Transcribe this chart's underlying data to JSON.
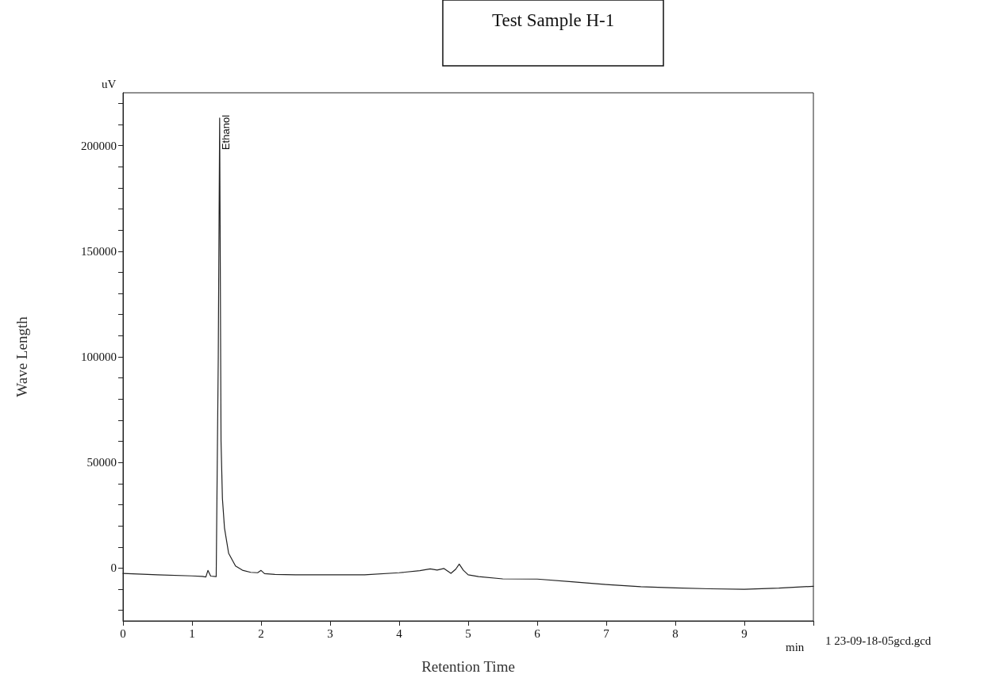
{
  "chart_data": {
    "type": "line",
    "title": "Test Sample H-1",
    "xlabel": "Retention Time",
    "ylabel": "Wave Length",
    "annotations": [
      {
        "text": "Ethanol",
        "x": 1.4,
        "y": 213000
      },
      "uV",
      "min",
      "1 23-09-18-05gcd.gcd"
    ],
    "series": [
      {
        "color": "#222222",
        "x": [
          0,
          0.5,
          1.0,
          1.15,
          1.2,
          1.23,
          1.27,
          1.35,
          1.38,
          1.4,
          1.42,
          1.44,
          1.47,
          1.53,
          1.63,
          1.73,
          1.85,
          1.95,
          2.0,
          2.05,
          2.2,
          2.5,
          3.0,
          3.5,
          4.0,
          4.3,
          4.45,
          4.55,
          4.65,
          4.75,
          4.82,
          4.87,
          4.93,
          5.0,
          5.15,
          5.5,
          6.0,
          6.5,
          7.0,
          7.5,
          8.0,
          8.5,
          9.0,
          9.5,
          10.0
        ],
        "values": [
          -2500,
          -3200,
          -3700,
          -3900,
          -4200,
          -1100,
          -3800,
          -4000,
          100000,
          213000,
          60000,
          33000,
          19000,
          7000,
          1000,
          -1000,
          -2000,
          -2200,
          -1100,
          -2600,
          -3000,
          -3200,
          -3200,
          -3200,
          -2200,
          -1200,
          -400,
          -900,
          -200,
          -2500,
          -500,
          1900,
          -1000,
          -3200,
          -4000,
          -5100,
          -5200,
          -6500,
          -7800,
          -8800,
          -9400,
          -9800,
          -10000,
          -9500,
          -8600
        ]
      }
    ],
    "xlim": [
      0,
      10
    ],
    "xticks": [
      0,
      1,
      2,
      3,
      4,
      5,
      6,
      7,
      8,
      9,
      {
        "value": 10,
        "label": null
      }
    ],
    "ylim": [
      -25000,
      225000
    ],
    "yticks": [
      {
        "value": -20000,
        "label": null
      },
      {
        "value": -10000,
        "label": null
      },
      0,
      {
        "value": 10000,
        "label": null
      },
      {
        "value": 20000,
        "label": null
      },
      {
        "value": 30000,
        "label": null
      },
      {
        "value": 40000,
        "label": null
      },
      50000,
      {
        "value": 60000,
        "label": null
      },
      {
        "value": 70000,
        "label": null
      },
      {
        "value": 80000,
        "label": null
      },
      {
        "value": 90000,
        "label": null
      },
      100000,
      {
        "value": 110000,
        "label": null
      },
      {
        "value": 120000,
        "label": null
      },
      {
        "value": 130000,
        "label": null
      },
      {
        "value": 140000,
        "label": null
      },
      150000,
      {
        "value": 160000,
        "label": null
      },
      {
        "value": 170000,
        "label": null
      },
      {
        "value": 180000,
        "label": null
      },
      {
        "value": 190000,
        "label": null
      },
      200000,
      {
        "value": 210000,
        "label": null
      },
      {
        "value": 220000,
        "label": null
      }
    ],
    "grid": false,
    "marker": "none",
    "line_style": "solid"
  }
}
